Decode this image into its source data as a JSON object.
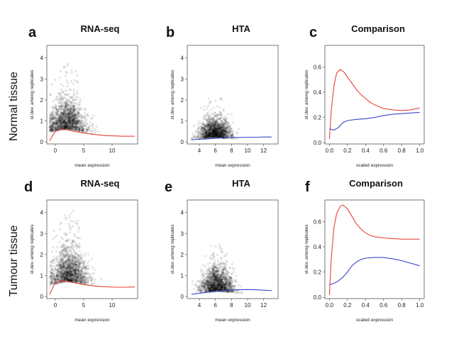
{
  "row_labels": [
    "Normal tissue",
    "Tumour tissue"
  ],
  "chart_data": [
    {
      "letter": "a",
      "title": "RNA-seq",
      "type": "scatter",
      "xlabel": "mean expression",
      "ylabel": "st.dev. among replicates",
      "xlim": [
        -1.5,
        14.5
      ],
      "ylim": [
        -0.1,
        4.6
      ],
      "xticks": [
        0,
        5,
        10
      ],
      "yticks": [
        0,
        1,
        2,
        3,
        4
      ],
      "cloud": {
        "x_center": 2.0,
        "x_spread": 3.0,
        "x_min": -1,
        "x_max": 11,
        "y_base": 0.6,
        "y_spread": 0.7,
        "y_max": 3.8
      },
      "series": [
        {
          "color": "#e8413a",
          "points": [
            [
              -1,
              0.05
            ],
            [
              -0.5,
              0.3
            ],
            [
              0,
              0.5
            ],
            [
              1,
              0.6
            ],
            [
              2,
              0.58
            ],
            [
              3,
              0.52
            ],
            [
              5,
              0.42
            ],
            [
              7,
              0.35
            ],
            [
              9,
              0.3
            ],
            [
              11,
              0.28
            ],
            [
              12,
              0.27
            ],
            [
              14,
              0.27
            ]
          ]
        }
      ]
    },
    {
      "letter": "b",
      "title": "HTA",
      "type": "scatter",
      "xlabel": "mean expression",
      "ylabel": "st.dev. among replicates",
      "xlim": [
        2.5,
        13.8
      ],
      "ylim": [
        -0.1,
        4.6
      ],
      "xticks": [
        4,
        6,
        8,
        10,
        12
      ],
      "yticks": [
        0,
        1,
        2,
        3,
        4
      ],
      "cloud": {
        "x_center": 6.0,
        "x_spread": 1.8,
        "x_min": 3,
        "x_max": 11,
        "y_base": 0.2,
        "y_spread": 0.45,
        "y_max": 2.3
      },
      "series": [
        {
          "color": "#3a46c8",
          "points": [
            [
              3,
              0.1
            ],
            [
              4,
              0.12
            ],
            [
              5,
              0.14
            ],
            [
              6,
              0.17
            ],
            [
              7,
              0.2
            ],
            [
              8,
              0.21
            ],
            [
              9,
              0.21
            ],
            [
              10,
              0.22
            ],
            [
              11,
              0.22
            ],
            [
              12,
              0.23
            ],
            [
              13,
              0.23
            ]
          ]
        }
      ]
    },
    {
      "letter": "c",
      "title": "Comparison",
      "type": "line",
      "xlabel": "scaled expression",
      "ylabel": "st.dev. among replicates",
      "xlim": [
        -0.05,
        1.05
      ],
      "ylim": [
        -0.01,
        0.77
      ],
      "xticks": [
        0.0,
        0.2,
        0.4,
        0.6,
        0.8,
        1.0
      ],
      "yticks": [
        0.0,
        0.2,
        0.4,
        0.6
      ],
      "series": [
        {
          "color": "#e8413a",
          "points": [
            [
              0.0,
              0.03
            ],
            [
              0.02,
              0.25
            ],
            [
              0.05,
              0.45
            ],
            [
              0.08,
              0.55
            ],
            [
              0.12,
              0.58
            ],
            [
              0.16,
              0.56
            ],
            [
              0.2,
              0.52
            ],
            [
              0.25,
              0.47
            ],
            [
              0.3,
              0.42
            ],
            [
              0.35,
              0.38
            ],
            [
              0.4,
              0.35
            ],
            [
              0.45,
              0.32
            ],
            [
              0.5,
              0.3
            ],
            [
              0.6,
              0.27
            ],
            [
              0.7,
              0.26
            ],
            [
              0.8,
              0.255
            ],
            [
              0.9,
              0.26
            ],
            [
              1.0,
              0.275
            ]
          ]
        },
        {
          "color": "#3a46c8",
          "points": [
            [
              0.0,
              0.11
            ],
            [
              0.05,
              0.1
            ],
            [
              0.1,
              0.12
            ],
            [
              0.15,
              0.16
            ],
            [
              0.2,
              0.175
            ],
            [
              0.3,
              0.185
            ],
            [
              0.4,
              0.19
            ],
            [
              0.5,
              0.2
            ],
            [
              0.6,
              0.215
            ],
            [
              0.7,
              0.225
            ],
            [
              0.8,
              0.23
            ],
            [
              0.9,
              0.235
            ],
            [
              1.0,
              0.24
            ]
          ]
        }
      ]
    },
    {
      "letter": "d",
      "title": "RNA-seq",
      "type": "scatter",
      "xlabel": "mean expression",
      "ylabel": "st.dev. among replicates",
      "xlim": [
        -1.5,
        14.5
      ],
      "ylim": [
        -0.1,
        4.6
      ],
      "xticks": [
        0,
        5,
        10
      ],
      "yticks": [
        0,
        1,
        2,
        3,
        4
      ],
      "cloud": {
        "x_center": 2.5,
        "x_spread": 3.0,
        "x_min": -1,
        "x_max": 11,
        "y_base": 0.7,
        "y_spread": 0.8,
        "y_max": 4.2
      },
      "series": [
        {
          "color": "#e8413a",
          "points": [
            [
              -1,
              0.1
            ],
            [
              -0.5,
              0.4
            ],
            [
              0,
              0.65
            ],
            [
              1,
              0.75
            ],
            [
              2,
              0.72
            ],
            [
              3,
              0.67
            ],
            [
              5,
              0.57
            ],
            [
              7,
              0.5
            ],
            [
              9,
              0.46
            ],
            [
              11,
              0.44
            ],
            [
              12,
              0.44
            ],
            [
              14,
              0.45
            ]
          ]
        }
      ]
    },
    {
      "letter": "e",
      "title": "HTA",
      "type": "scatter",
      "xlabel": "mean expression",
      "ylabel": "st.dev. among replicates",
      "xlim": [
        2.5,
        13.8
      ],
      "ylim": [
        -0.1,
        4.6
      ],
      "xticks": [
        4,
        6,
        8,
        10,
        12
      ],
      "yticks": [
        0,
        1,
        2,
        3,
        4
      ],
      "cloud": {
        "x_center": 6.2,
        "x_spread": 1.8,
        "x_min": 3,
        "x_max": 11,
        "y_base": 0.25,
        "y_spread": 0.55,
        "y_max": 2.7
      },
      "series": [
        {
          "color": "#3a46c8",
          "points": [
            [
              3,
              0.1
            ],
            [
              4,
              0.15
            ],
            [
              5,
              0.2
            ],
            [
              6,
              0.24
            ],
            [
              7,
              0.28
            ],
            [
              8,
              0.3
            ],
            [
              9,
              0.32
            ],
            [
              10,
              0.33
            ],
            [
              11,
              0.32
            ],
            [
              12,
              0.3
            ],
            [
              13,
              0.28
            ]
          ]
        }
      ]
    },
    {
      "letter": "f",
      "title": "Comparison",
      "type": "line",
      "xlabel": "scaled expression",
      "ylabel": "st.dev. among replicates",
      "xlim": [
        -0.05,
        1.05
      ],
      "ylim": [
        -0.01,
        0.77
      ],
      "xticks": [
        0.0,
        0.2,
        0.4,
        0.6,
        0.8,
        1.0
      ],
      "yticks": [
        0.0,
        0.2,
        0.4,
        0.6
      ],
      "series": [
        {
          "color": "#e8413a",
          "points": [
            [
              0.0,
              0.02
            ],
            [
              0.02,
              0.3
            ],
            [
              0.05,
              0.55
            ],
            [
              0.08,
              0.66
            ],
            [
              0.12,
              0.72
            ],
            [
              0.15,
              0.73
            ],
            [
              0.2,
              0.7
            ],
            [
              0.25,
              0.64
            ],
            [
              0.3,
              0.58
            ],
            [
              0.35,
              0.54
            ],
            [
              0.4,
              0.51
            ],
            [
              0.45,
              0.49
            ],
            [
              0.5,
              0.48
            ],
            [
              0.6,
              0.47
            ],
            [
              0.7,
              0.465
            ],
            [
              0.8,
              0.46
            ],
            [
              0.9,
              0.46
            ],
            [
              1.0,
              0.46
            ]
          ]
        },
        {
          "color": "#3a46c8",
          "points": [
            [
              0.0,
              0.1
            ],
            [
              0.05,
              0.11
            ],
            [
              0.1,
              0.13
            ],
            [
              0.15,
              0.16
            ],
            [
              0.2,
              0.2
            ],
            [
              0.25,
              0.25
            ],
            [
              0.3,
              0.28
            ],
            [
              0.35,
              0.3
            ],
            [
              0.4,
              0.31
            ],
            [
              0.5,
              0.315
            ],
            [
              0.6,
              0.315
            ],
            [
              0.7,
              0.305
            ],
            [
              0.8,
              0.29
            ],
            [
              0.9,
              0.27
            ],
            [
              1.0,
              0.25
            ]
          ]
        }
      ]
    }
  ]
}
